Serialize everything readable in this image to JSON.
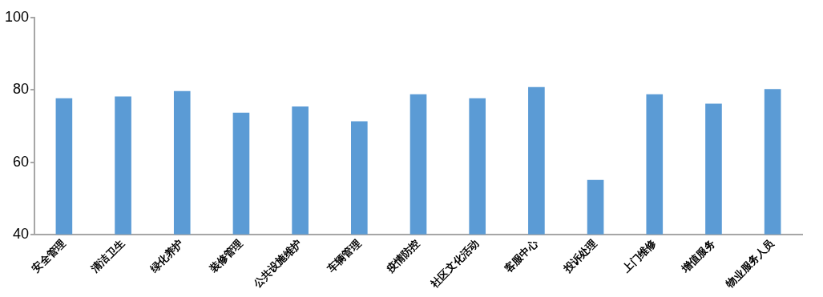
{
  "chart_data": {
    "type": "bar",
    "categories": [
      "安全管理",
      "清洁卫生",
      "绿化养护",
      "装修管理",
      "公共设施维护",
      "车辆管理",
      "疫情防控",
      "社区文化活动",
      "客服中心",
      "投诉处理",
      "上门维修",
      "增值服务",
      "物业服务人员"
    ],
    "values": [
      77.7,
      78.2,
      79.7,
      73.7,
      75.4,
      71.3,
      78.8,
      77.7,
      80.8,
      55.1,
      78.8,
      76.2,
      80.2
    ],
    "color": "#5b9bd5",
    "ylim": [
      40,
      100
    ],
    "yticks": [
      40,
      60,
      80,
      100
    ],
    "grid": false,
    "legend": false
  }
}
